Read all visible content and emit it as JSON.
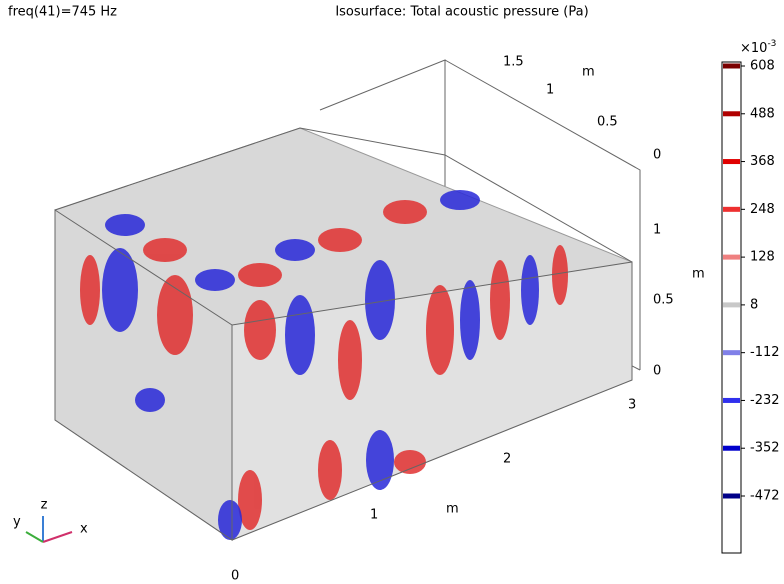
{
  "header": {
    "frequency": "freq(41)=745 Hz",
    "title": "Isosurface: Total acoustic pressure (Pa)"
  },
  "axes": {
    "y": {
      "ticks": [
        "1.5",
        "1",
        "0.5",
        "0"
      ],
      "unit": "m"
    },
    "z": {
      "ticks": [
        "1",
        "0.5",
        "0"
      ],
      "unit": "m"
    },
    "x": {
      "ticks": [
        "0",
        "1",
        "2",
        "3"
      ],
      "unit": "m"
    },
    "triad": [
      "x",
      "y",
      "z"
    ]
  },
  "colorbar": {
    "multiplier": {
      "base": "×10",
      "exponent": "-3"
    },
    "levels": [
      608,
      488,
      368,
      248,
      128,
      8,
      -112,
      -232,
      -352,
      -472
    ],
    "colors": [
      "#7a0000",
      "#b00000",
      "#e00000",
      "#ee3030",
      "#ef8080",
      "#c8c8c8",
      "#8080e8",
      "#3030ee",
      "#0000cc",
      "#000088"
    ]
  }
}
